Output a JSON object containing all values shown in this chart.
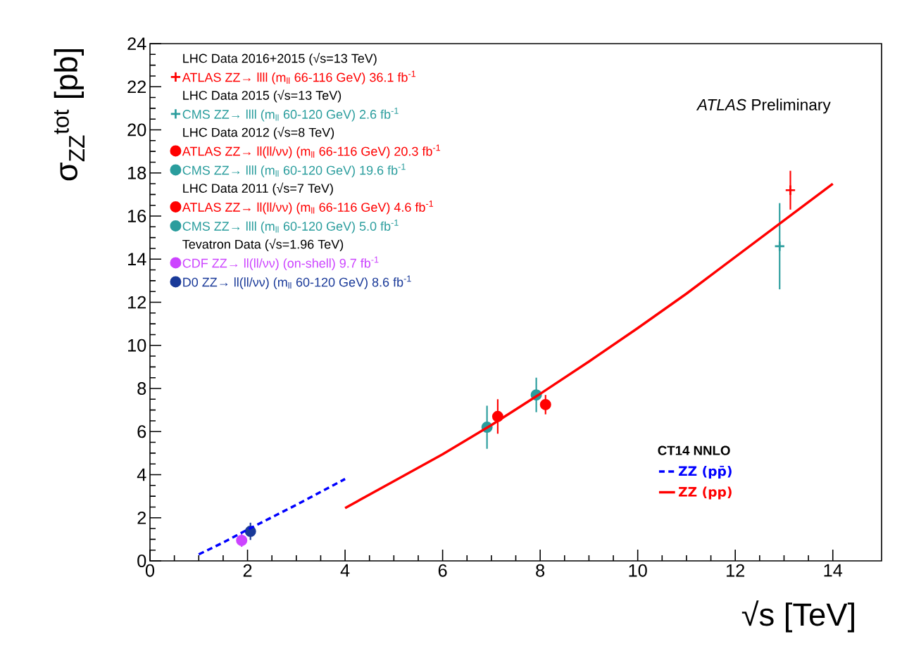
{
  "chart_data": {
    "type": "scatter",
    "xlabel": "√s [TeV]",
    "ylabel": "σ$_{ZZ}$$^{tot}$ [pb]",
    "xlim": [
      0,
      15
    ],
    "ylim": [
      0,
      24
    ],
    "xticks": [
      0,
      2,
      4,
      6,
      8,
      10,
      12,
      14
    ],
    "yticks": [
      0,
      2,
      4,
      6,
      8,
      10,
      12,
      14,
      16,
      18,
      20,
      22,
      24
    ],
    "legend": "top left",
    "legend_title": "CT14 NNLO",
    "annotations": [
      "*ATLAS* Preliminary",
      "LHC Data 2016+2015 (√s=13 TeV)",
      "LHC Data 2015 (√s=13 TeV)",
      "LHC Data 2012 (√s=8 TeV)",
      "LHC Data 2011 (√s=7 TeV)",
      "Tevatron Data (√s=1.96 TeV)"
    ],
    "series": [
      {
        "name": "ATLAS ZZ→ llll (m$_{ll}$ 66-116 GeV) 36.1 fb$^{-1}$",
        "color": "#ff0000",
        "marker": "cross",
        "x": [
          13.13
        ],
        "values": [
          17.2
        ],
        "errors": [
          0.9
        ]
      },
      {
        "name": "CMS ZZ→ llll (m$_{ll}$ 60-120 GeV) 2.6 fb$^{-1}$",
        "color": "#2a9d9d",
        "marker": "cross",
        "x": [
          12.91
        ],
        "values": [
          14.6
        ],
        "errors": [
          2.0
        ]
      },
      {
        "name": "ATLAS ZZ→ ll(ll/νν) (m$_{ll}$ 66-116 GeV) 20.3 fb$^{-1}$",
        "color": "#ff0000",
        "marker": "circle",
        "x": [
          8.11
        ],
        "values": [
          7.25
        ],
        "errors": [
          0.45
        ]
      },
      {
        "name": "CMS ZZ→ llll (m$_{ll}$ 60-120 GeV) 19.6 fb$^{-1}$",
        "color": "#2a9d9d",
        "marker": "circle",
        "x": [
          7.92
        ],
        "values": [
          7.7
        ],
        "errors": [
          0.8
        ]
      },
      {
        "name": "ATLAS ZZ→ ll(ll/νν) (m$_{ll}$ 66-116 GeV) 4.6 fb$^{-1}$",
        "color": "#ff0000",
        "marker": "circle",
        "x": [
          7.13
        ],
        "values": [
          6.7
        ],
        "errors": [
          0.8
        ]
      },
      {
        "name": "CMS ZZ→ llll (m$_{ll}$ 60-120 GeV) 5.0 fb$^{-1}$",
        "color": "#2a9d9d",
        "marker": "circle",
        "x": [
          6.91
        ],
        "values": [
          6.2
        ],
        "errors": [
          1.0
        ]
      },
      {
        "name": "CDF ZZ→ ll(ll/νν) (on-shell) 9.7 fb$^{-1}$",
        "color": "#cc44ff",
        "marker": "circle",
        "x": [
          1.88
        ],
        "values": [
          0.95
        ],
        "errors": [
          0.3
        ]
      },
      {
        "name": "D0 ZZ→ ll(ll/νν) (m$_{ll}$ 60-120 GeV) 8.6 fb$^{-1}$",
        "color": "#1a3a99",
        "marker": "circle",
        "x": [
          2.06
        ],
        "values": [
          1.37
        ],
        "errors": [
          0.4
        ]
      },
      {
        "type": "line",
        "name": "ZZ (pp̄)",
        "color": "#0000ff",
        "line_style": "dashed",
        "x": [
          1,
          1.5,
          2,
          3,
          4
        ],
        "values": [
          0.3,
          0.85,
          1.45,
          2.6,
          3.8
        ]
      },
      {
        "type": "line",
        "name": "ZZ (pp)",
        "color": "#ff0000",
        "line_style": "solid",
        "x": [
          4,
          5,
          6,
          7,
          8,
          9,
          10,
          11,
          12,
          13,
          14
        ],
        "values": [
          2.45,
          3.7,
          4.95,
          6.3,
          7.75,
          9.25,
          10.8,
          12.4,
          14.1,
          15.8,
          17.5
        ]
      }
    ]
  }
}
